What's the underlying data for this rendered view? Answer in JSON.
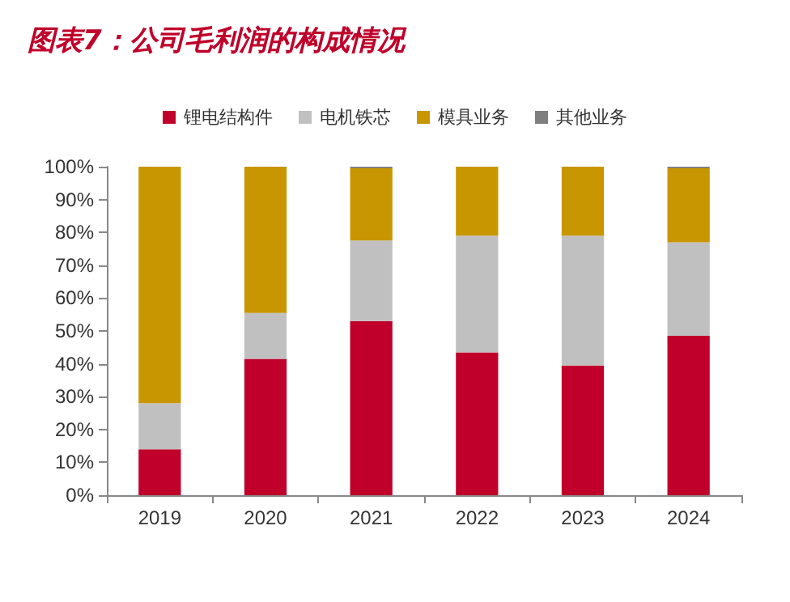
{
  "chart_data": {
    "type": "bar",
    "title": "图表7：公司毛利润的构成情况",
    "stacked": true,
    "categories": [
      "2019",
      "2020",
      "2021",
      "2022",
      "2023",
      "2024"
    ],
    "series": [
      {
        "name": "锂电结构件",
        "color": "#c0002a",
        "values": [
          14,
          41.5,
          53,
          43.5,
          39.5,
          48.5
        ]
      },
      {
        "name": "电机铁芯",
        "color": "#c0c0c0",
        "values": [
          14,
          14,
          24.5,
          35.5,
          39.5,
          28.5
        ]
      },
      {
        "name": "模具业务",
        "color": "#c89600",
        "values": [
          72,
          44.5,
          22,
          21,
          21,
          22.5
        ]
      },
      {
        "name": "其他业务",
        "color": "#7f7f7f",
        "values": [
          0,
          0,
          0.5,
          0,
          0,
          0.5
        ]
      }
    ],
    "ylim": [
      0,
      100
    ],
    "yticks": [
      {
        "value": 0,
        "label": "0%"
      },
      {
        "value": 10,
        "label": "10%"
      },
      {
        "value": 20,
        "label": "20%"
      },
      {
        "value": 30,
        "label": "30%"
      },
      {
        "value": 40,
        "label": "40%"
      },
      {
        "value": 50,
        "label": "50%"
      },
      {
        "value": 60,
        "label": "60%"
      },
      {
        "value": 70,
        "label": "70%"
      },
      {
        "value": 80,
        "label": "80%"
      },
      {
        "value": 90,
        "label": "90%"
      },
      {
        "value": 100,
        "label": "100%"
      }
    ],
    "grid": false,
    "legend": "top"
  }
}
